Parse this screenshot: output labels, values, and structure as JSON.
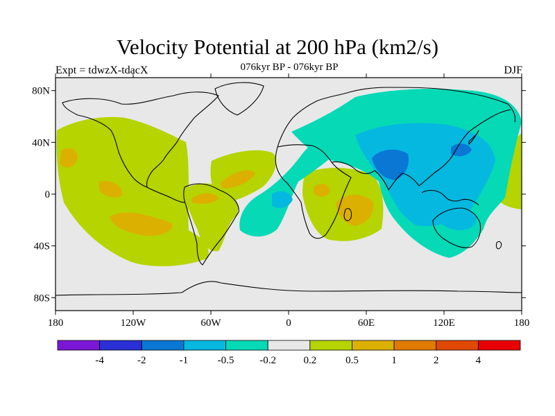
{
  "header": {
    "title": "Velocity Potential at 200 hPa (km2/s)",
    "subtitle": "076kyr BP - 076kyr BP",
    "left_label": "Expt = tdwzX-tdacX",
    "right_label": "DJF"
  },
  "map": {
    "projection": "cylindrical equidistant",
    "lon_range": [
      -180,
      180
    ],
    "lat_range": [
      -90,
      90
    ],
    "background_color": "#e8e8e8",
    "coastline_color": "#000000",
    "lon_ticks": [
      {
        "lon": -180,
        "label": "180"
      },
      {
        "lon": -120,
        "label": "120W"
      },
      {
        "lon": -60,
        "label": "60W"
      },
      {
        "lon": 0,
        "label": "0"
      },
      {
        "lon": 60,
        "label": "60E"
      },
      {
        "lon": 120,
        "label": "120E"
      },
      {
        "lon": 180,
        "label": "180"
      }
    ],
    "lat_ticks": [
      {
        "lat": 80,
        "label": "80N"
      },
      {
        "lat": 40,
        "label": "40N"
      },
      {
        "lat": 0,
        "label": "0"
      },
      {
        "lat": -40,
        "label": "40S"
      },
      {
        "lat": -80,
        "label": "80S"
      }
    ]
  },
  "colorbar": {
    "colors": [
      "#7b16d6",
      "#2a2fd6",
      "#0a77d4",
      "#05b8e0",
      "#05d9b6",
      "#e8e8e8",
      "#b5d400",
      "#dcb000",
      "#e07a00",
      "#e04800",
      "#e80000"
    ],
    "labels": [
      "-4",
      "-2",
      "-1",
      "-0.5",
      "-0.2",
      "0.2",
      "0.5",
      "1",
      "2",
      "4"
    ]
  }
}
